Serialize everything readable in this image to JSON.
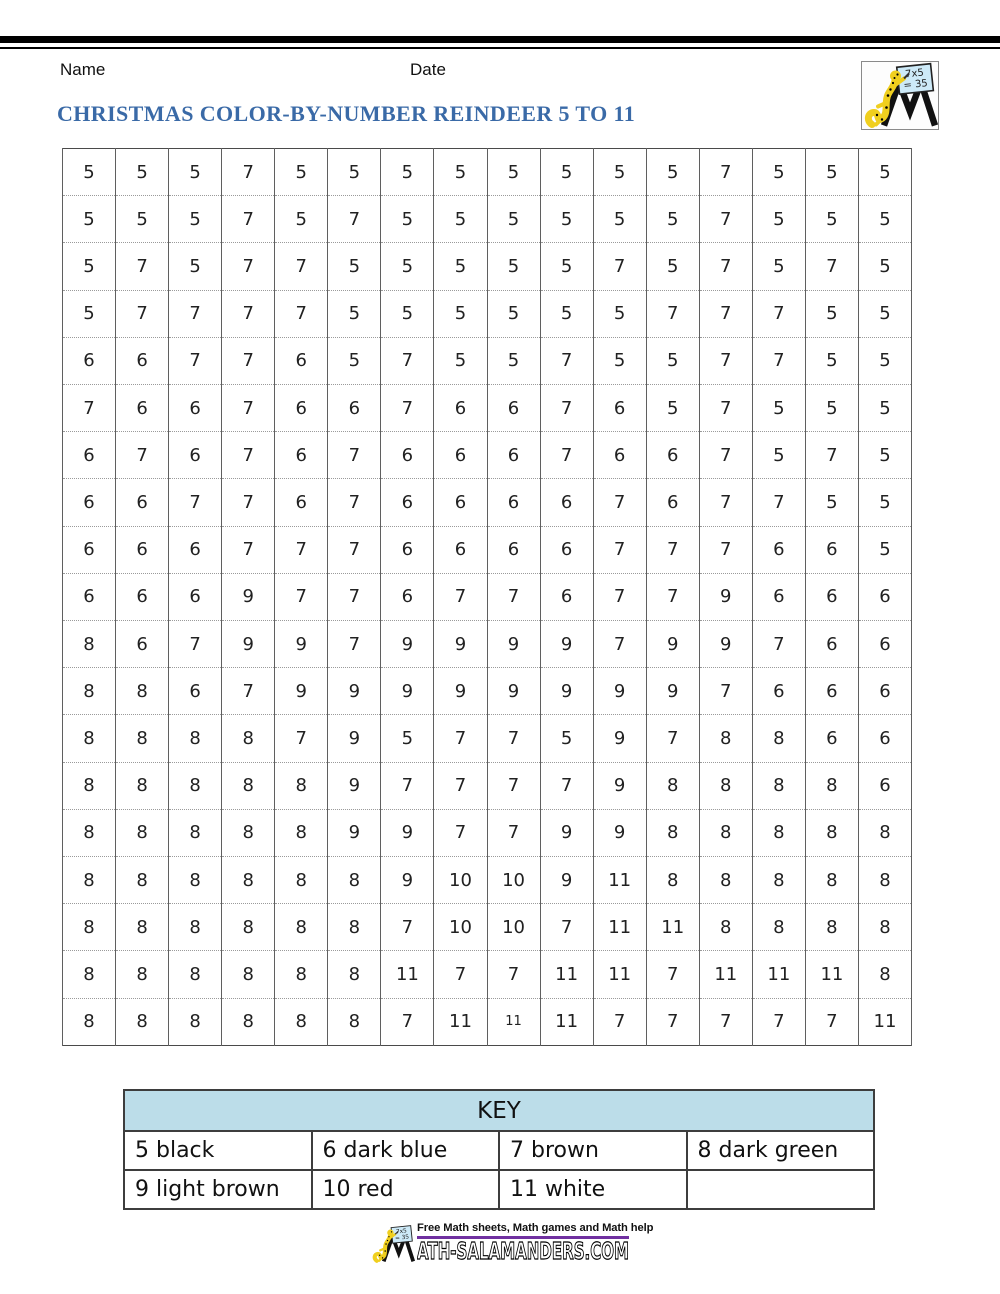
{
  "header": {
    "name_label": "Name",
    "date_label": "Date",
    "title": "CHRISTMAS COLOR-BY-NUMBER REINDEER 5 TO 11"
  },
  "logo": {
    "board_line1": "7x5",
    "board_line2": "= 35"
  },
  "grid": {
    "columns": 16,
    "rows": [
      [
        5,
        5,
        5,
        7,
        5,
        5,
        5,
        5,
        5,
        5,
        5,
        5,
        7,
        5,
        5,
        5
      ],
      [
        5,
        5,
        5,
        7,
        5,
        7,
        5,
        5,
        5,
        5,
        5,
        5,
        7,
        5,
        5,
        5
      ],
      [
        5,
        7,
        5,
        7,
        7,
        5,
        5,
        5,
        5,
        5,
        7,
        5,
        7,
        5,
        7,
        5
      ],
      [
        5,
        7,
        7,
        7,
        7,
        5,
        5,
        5,
        5,
        5,
        5,
        7,
        7,
        7,
        5,
        5
      ],
      [
        6,
        6,
        7,
        7,
        6,
        5,
        7,
        5,
        5,
        7,
        5,
        5,
        7,
        7,
        5,
        5
      ],
      [
        7,
        6,
        6,
        7,
        6,
        6,
        7,
        6,
        6,
        7,
        6,
        5,
        7,
        5,
        5,
        5
      ],
      [
        6,
        7,
        6,
        7,
        6,
        7,
        6,
        6,
        6,
        7,
        6,
        6,
        7,
        5,
        7,
        5
      ],
      [
        6,
        6,
        7,
        7,
        6,
        7,
        6,
        6,
        6,
        6,
        7,
        6,
        7,
        7,
        5,
        5
      ],
      [
        6,
        6,
        6,
        7,
        7,
        7,
        6,
        6,
        6,
        6,
        7,
        7,
        7,
        6,
        6,
        5
      ],
      [
        6,
        6,
        6,
        9,
        7,
        7,
        6,
        7,
        7,
        6,
        7,
        7,
        9,
        6,
        6,
        6
      ],
      [
        8,
        6,
        7,
        9,
        9,
        7,
        9,
        9,
        9,
        9,
        7,
        9,
        9,
        7,
        6,
        6
      ],
      [
        8,
        8,
        6,
        7,
        9,
        9,
        9,
        9,
        9,
        9,
        9,
        9,
        7,
        6,
        6,
        6
      ],
      [
        8,
        8,
        8,
        8,
        7,
        9,
        5,
        7,
        7,
        5,
        9,
        7,
        8,
        8,
        6,
        6
      ],
      [
        8,
        8,
        8,
        8,
        8,
        9,
        7,
        7,
        7,
        7,
        9,
        8,
        8,
        8,
        8,
        6
      ],
      [
        8,
        8,
        8,
        8,
        8,
        9,
        9,
        7,
        7,
        9,
        9,
        8,
        8,
        8,
        8,
        8
      ],
      [
        8,
        8,
        8,
        8,
        8,
        8,
        9,
        10,
        10,
        9,
        11,
        8,
        8,
        8,
        8,
        8
      ],
      [
        8,
        8,
        8,
        8,
        8,
        8,
        7,
        10,
        10,
        7,
        11,
        11,
        8,
        8,
        8,
        8
      ],
      [
        8,
        8,
        8,
        8,
        8,
        8,
        11,
        7,
        7,
        11,
        11,
        7,
        11,
        11,
        11,
        8
      ],
      [
        8,
        8,
        8,
        8,
        8,
        8,
        7,
        11,
        11,
        11,
        7,
        7,
        7,
        7,
        7,
        11
      ]
    ],
    "small_cell": {
      "row": 18,
      "col": 8
    }
  },
  "key": {
    "title": "KEY",
    "rows": [
      [
        "5 black",
        "6 dark blue",
        "7 brown",
        "8 dark green"
      ],
      [
        "9 light brown",
        "10 red",
        "11 white",
        ""
      ]
    ],
    "entries": [
      {
        "number": 5,
        "color": "black"
      },
      {
        "number": 6,
        "color": "dark blue"
      },
      {
        "number": 7,
        "color": "brown"
      },
      {
        "number": 8,
        "color": "dark green"
      },
      {
        "number": 9,
        "color": "light brown"
      },
      {
        "number": 10,
        "color": "red"
      },
      {
        "number": 11,
        "color": "white"
      }
    ]
  },
  "footer": {
    "tagline": "Free Math sheets, Math games and Math help",
    "site": "ATH-SALAMANDERS.COM"
  },
  "colors": {
    "title_blue": "#3a6aa7",
    "key_header_bg": "#bcdde9",
    "underline_purple": "#7030a0",
    "salamander_yellow": "#f0cf1e",
    "board_blue": "#cdeaf8",
    "grid_line": "#5f5f5f"
  }
}
